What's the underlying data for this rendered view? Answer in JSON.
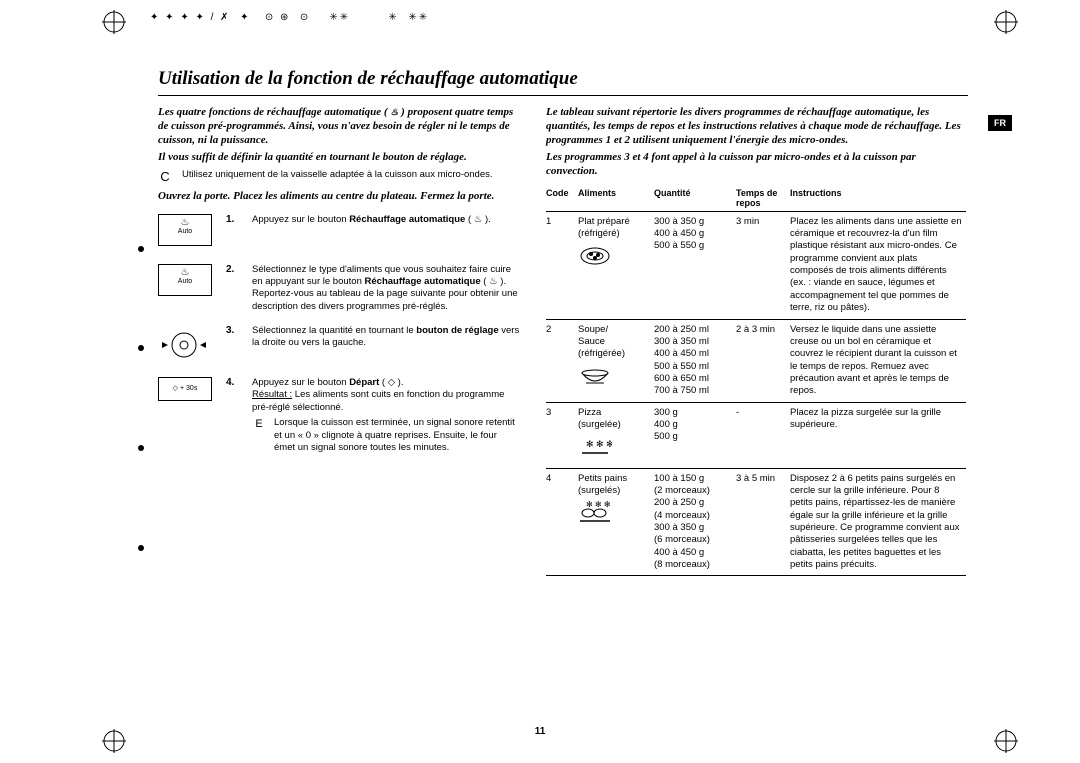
{
  "title": "Utilisation de la fonction de réchauffage automatique",
  "left": {
    "intro1": "Les quatre fonctions de réchauffage automatique ( ",
    "intro1b": " ) proposent quatre temps de cuisson pré-programmés. Ainsi, vous n'avez besoin de régler ni le temps de cuisson, ni la puissance.",
    "intro2": "Il vous suffit de définir la quantité en tournant le bouton de réglage.",
    "note": "Utilisez uniquement de la vaisselle adaptée à la cuisson aux micro-ondes.",
    "intro3": "Ouvrez la porte. Placez les aliments au centre du plateau. Fermez la porte.",
    "steps": [
      {
        "num": "1.",
        "icon": "auto",
        "text_a": "Appuyez sur le bouton ",
        "bold_a": "Réchauffage automatique",
        "text_b": " ( ",
        "text_c": " )."
      },
      {
        "num": "2.",
        "icon": "auto",
        "text_a": "Sélectionnez le type d'aliments que vous souhaitez faire cuire en appuyant sur le bouton ",
        "bold_a": "Réchauffage automatique",
        "text_b": " ( ",
        "text_c": " ). Reportez-vous au tableau de la page suivante pour obtenir une description des divers programmes pré-réglés."
      },
      {
        "num": "3.",
        "icon": "dial",
        "text_a": "Sélectionnez la quantité en tournant le ",
        "bold_a": "bouton de réglage",
        "text_b": " vers la droite ou vers la gauche."
      },
      {
        "num": "4.",
        "icon": "depart",
        "text_a": "Appuyez sur le bouton ",
        "bold_a": "Départ",
        "text_b": " ( ",
        "text_c": " ).",
        "result_label": "Résultat :",
        "result_text": " Les aliments sont cuits en fonction du programme pré-réglé sélectionné.",
        "e_text": "Lorsque la cuisson est terminée, un signal sonore retentit et un « 0 » clignote à quatre reprises. Ensuite, le four émet un signal sonore toutes les minutes."
      }
    ],
    "auto_label": "Auto",
    "depart_label": "+ 30s"
  },
  "right": {
    "intro1": "Le tableau suivant répertorie les divers programmes de réchauffage automatique, les quantités, les temps de repos et les instructions relatives à chaque mode de réchauffage. Les programmes 1 et 2 utilisent uniquement l'énergie des micro-ondes.",
    "intro2": "Les programmes 3 et 4 font appel à la cuisson par micro-ondes et à la cuisson par convection.",
    "headers": {
      "code": "Code",
      "food": "Aliments",
      "qty": "Quantité",
      "time": "Temps de repos",
      "instr": "Instructions"
    },
    "rows": [
      {
        "code": "1",
        "food": "Plat préparé (réfrigéré)",
        "icon": "plate",
        "qty": "300 à 350 g\n400 à 450 g\n500 à 550 g",
        "time": "3 min",
        "instr": "Placez les aliments dans une assiette en céramique et recouvrez-la d'un film plastique résistant aux micro-ondes. Ce programme convient aux plats composés de trois aliments différents (ex. : viande en sauce, légumes et accompagnement tel que pommes de terre, riz ou pâtes)."
      },
      {
        "code": "2",
        "food": "Soupe/ Sauce (réfrigérée)",
        "icon": "bowl",
        "qty": "200 à 250 ml\n300 à 350 ml\n400 à 450 ml\n500 à 550 ml\n600 à 650 ml\n700 à 750 ml",
        "time": "2 à 3 min",
        "instr": "Versez le liquide dans une assiette creuse ou un bol en céramique et couvrez le récipient durant la cuisson et le temps de repos. Remuez avec précaution avant et après le temps de repos."
      },
      {
        "code": "3",
        "food": "Pizza (surgelée)",
        "icon": "pizza",
        "qty": "300 g\n400 g\n500 g",
        "time": "-",
        "instr": "Placez la pizza surgelée sur la grille supérieure."
      },
      {
        "code": "4",
        "food": "Petits pains (surgelés)",
        "icon": "bread",
        "qty": "100 à 150 g\n(2 morceaux)\n200 à 250 g\n(4 morceaux)\n300 à 350 g\n(6 morceaux)\n400 à 450 g\n(8 morceaux)",
        "time": "3 à 5 min",
        "instr": "Disposez 2 à 6 petits pains surgelés en cercle sur la grille inférieure. Pour 8 petits pains, répartissez-les de manière égale sur la grille inférieure et la grille supérieure. Ce programme convient aux pâtisseries surgelées telles que les ciabatta, les petites baguettes et les petits pains précuits."
      }
    ]
  },
  "page_number": "11",
  "badge": "FR",
  "colors": {
    "text": "#000000",
    "bg": "#ffffff"
  }
}
